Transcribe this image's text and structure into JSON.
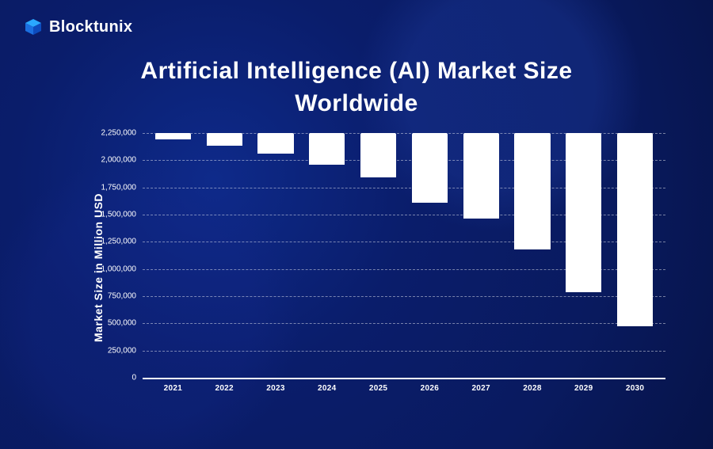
{
  "brand": {
    "name": "Blocktunix"
  },
  "chart": {
    "type": "bar",
    "title_line1": "Artificial Intelligence (AI) Market Size",
    "title_line2": "Worldwide",
    "title_fontsize": 30,
    "ylabel": "Market Size in Million USD",
    "ylabel_fontsize": 14,
    "xlabel_fontsize": 10,
    "ytick_fontsize": 10,
    "ylim": [
      0,
      2250000
    ],
    "ytick_step": 250000,
    "yticks": [
      {
        "value": 0,
        "label": "0"
      },
      {
        "value": 250000,
        "label": "250,000"
      },
      {
        "value": 500000,
        "label": "500,000"
      },
      {
        "value": 750000,
        "label": "750,000"
      },
      {
        "value": 1000000,
        "label": "1,000,000"
      },
      {
        "value": 1250000,
        "label": "1,250,000"
      },
      {
        "value": 1500000,
        "label": "1,500,000"
      },
      {
        "value": 1750000,
        "label": "1,750,000"
      },
      {
        "value": 2000000,
        "label": "2,000,000"
      },
      {
        "value": 2250000,
        "label": "2,250,000"
      }
    ],
    "categories": [
      "2021",
      "2022",
      "2023",
      "2024",
      "2025",
      "2026",
      "2027",
      "2028",
      "2029",
      "2030"
    ],
    "values": [
      60000,
      120000,
      190000,
      290000,
      410000,
      640000,
      790000,
      1070000,
      1460000,
      1780000
    ],
    "bar_color": "#ffffff",
    "bar_width_pct": 70,
    "grid_color": "rgba(255,255,255,0.45)",
    "grid_dashed": true,
    "axis_color": "#ffffff",
    "background_color": "#0a1d6b",
    "text_color": "#ffffff"
  }
}
